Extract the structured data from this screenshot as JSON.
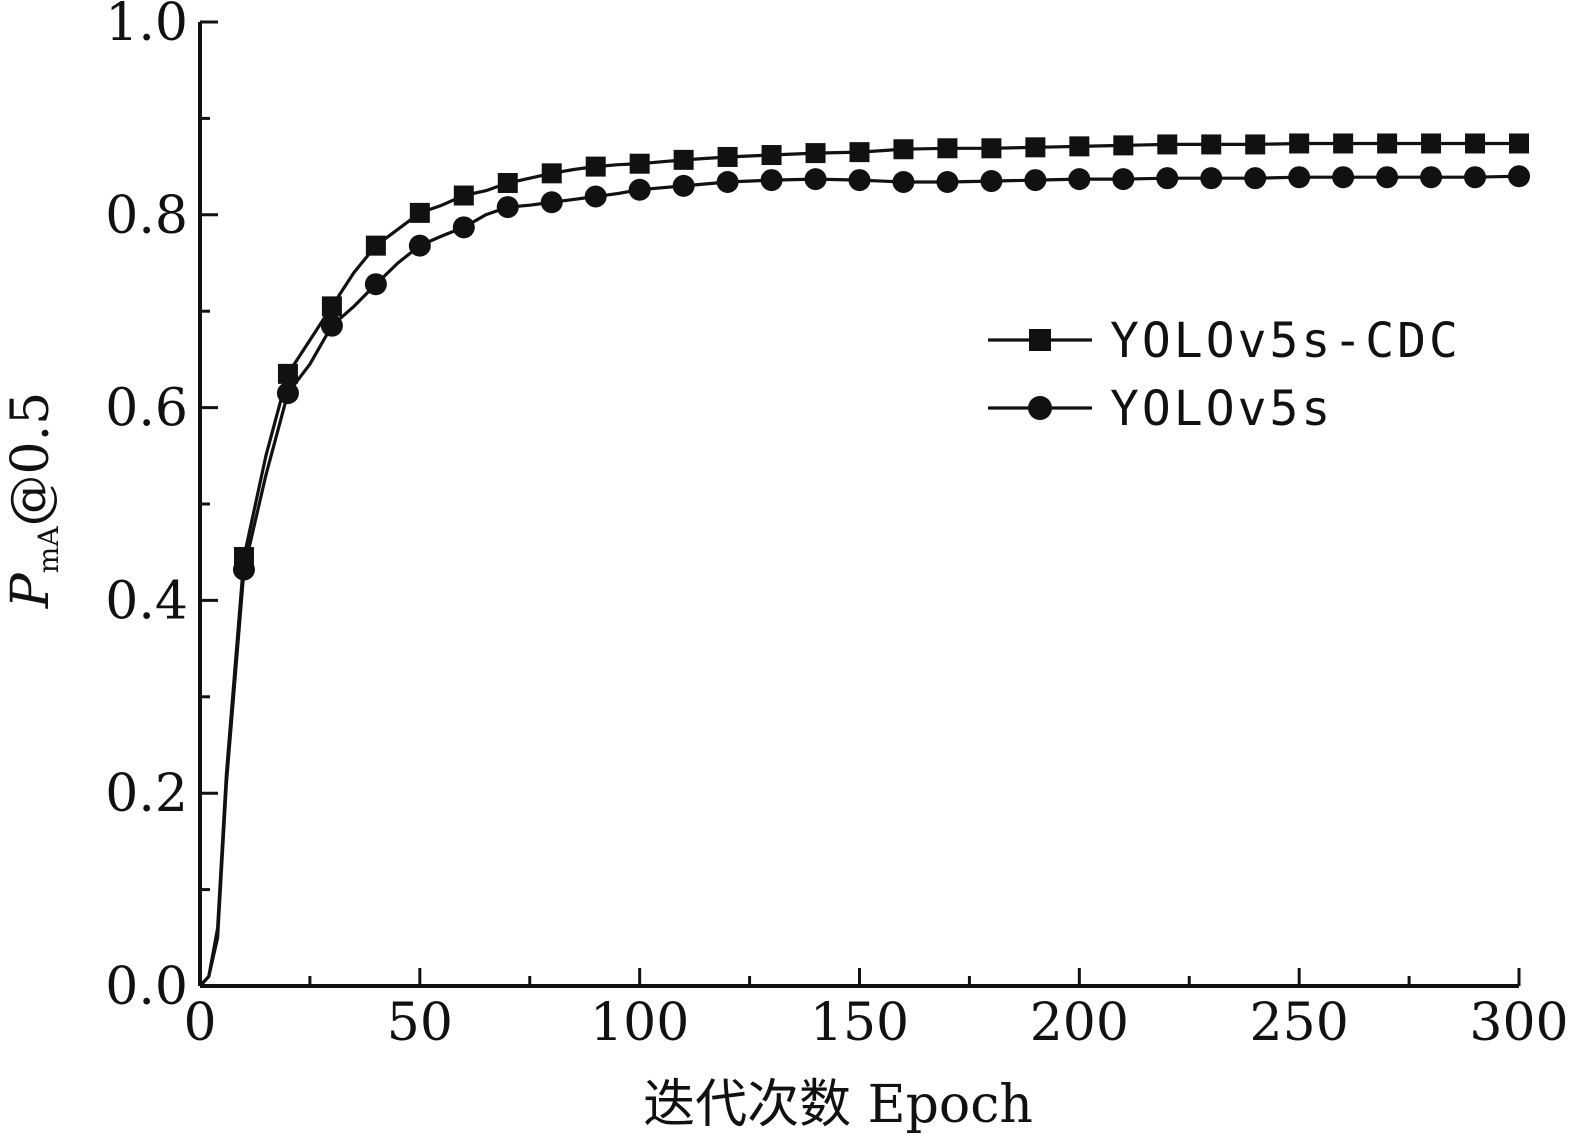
{
  "chart_data": {
    "type": "line",
    "title": "",
    "xlabel": "迭代次数 Epoch",
    "ylabel": {
      "main": "P",
      "sub": "mA",
      "suffix": "@0.5"
    },
    "xlim": [
      0,
      300
    ],
    "ylim": [
      0.0,
      1.0
    ],
    "x_ticks": [
      "0",
      "50",
      "100",
      "150",
      "200",
      "250",
      "300"
    ],
    "y_ticks": [
      "0.0",
      "0.2",
      "0.4",
      "0.6",
      "0.8",
      "1.0"
    ],
    "grid": false,
    "legend_position": "right",
    "x": [
      0,
      2,
      4,
      6,
      10,
      15,
      20,
      25,
      30,
      35,
      40,
      45,
      50,
      55,
      60,
      65,
      70,
      75,
      80,
      85,
      90,
      95,
      100,
      110,
      120,
      130,
      140,
      150,
      160,
      170,
      180,
      190,
      200,
      210,
      220,
      230,
      240,
      250,
      260,
      270,
      280,
      290,
      300
    ],
    "series": [
      {
        "name": "YOLOv5s-CDC",
        "marker": "square",
        "color": "#111111",
        "values": [
          0.0,
          0.01,
          0.06,
          0.22,
          0.445,
          0.55,
          0.635,
          0.67,
          0.705,
          0.74,
          0.768,
          0.785,
          0.802,
          0.81,
          0.82,
          0.825,
          0.833,
          0.838,
          0.843,
          0.847,
          0.85,
          0.852,
          0.853,
          0.857,
          0.86,
          0.862,
          0.864,
          0.865,
          0.868,
          0.869,
          0.869,
          0.87,
          0.871,
          0.872,
          0.873,
          0.873,
          0.873,
          0.874,
          0.874,
          0.874,
          0.874,
          0.874,
          0.874
        ],
        "marker_x": [
          10,
          20,
          30,
          40,
          50,
          60,
          70,
          80,
          90,
          100,
          110,
          120,
          130,
          140,
          150,
          160,
          170,
          180,
          190,
          200,
          210,
          220,
          230,
          240,
          250,
          260,
          270,
          280,
          290,
          300
        ],
        "marker_y": [
          0.445,
          0.635,
          0.705,
          0.768,
          0.802,
          0.82,
          0.833,
          0.843,
          0.85,
          0.853,
          0.857,
          0.86,
          0.862,
          0.864,
          0.865,
          0.868,
          0.869,
          0.869,
          0.87,
          0.871,
          0.872,
          0.873,
          0.873,
          0.873,
          0.874,
          0.874,
          0.874,
          0.874,
          0.874,
          0.874
        ]
      },
      {
        "name": "YOLOv5s",
        "marker": "circle",
        "color": "#111111",
        "values": [
          0.0,
          0.01,
          0.05,
          0.21,
          0.432,
          0.53,
          0.615,
          0.645,
          0.685,
          0.705,
          0.728,
          0.75,
          0.768,
          0.778,
          0.787,
          0.8,
          0.808,
          0.81,
          0.813,
          0.816,
          0.819,
          0.822,
          0.826,
          0.83,
          0.834,
          0.836,
          0.837,
          0.836,
          0.834,
          0.834,
          0.835,
          0.836,
          0.837,
          0.837,
          0.838,
          0.838,
          0.838,
          0.839,
          0.839,
          0.839,
          0.839,
          0.839,
          0.84
        ],
        "marker_x": [
          10,
          20,
          30,
          40,
          50,
          60,
          70,
          80,
          90,
          100,
          110,
          120,
          130,
          140,
          150,
          160,
          170,
          180,
          190,
          200,
          210,
          220,
          230,
          240,
          250,
          260,
          270,
          280,
          290,
          300
        ],
        "marker_y": [
          0.432,
          0.615,
          0.685,
          0.728,
          0.768,
          0.787,
          0.808,
          0.813,
          0.819,
          0.826,
          0.83,
          0.834,
          0.836,
          0.837,
          0.836,
          0.834,
          0.834,
          0.835,
          0.836,
          0.837,
          0.837,
          0.838,
          0.838,
          0.838,
          0.839,
          0.839,
          0.839,
          0.839,
          0.839,
          0.84
        ]
      }
    ]
  }
}
